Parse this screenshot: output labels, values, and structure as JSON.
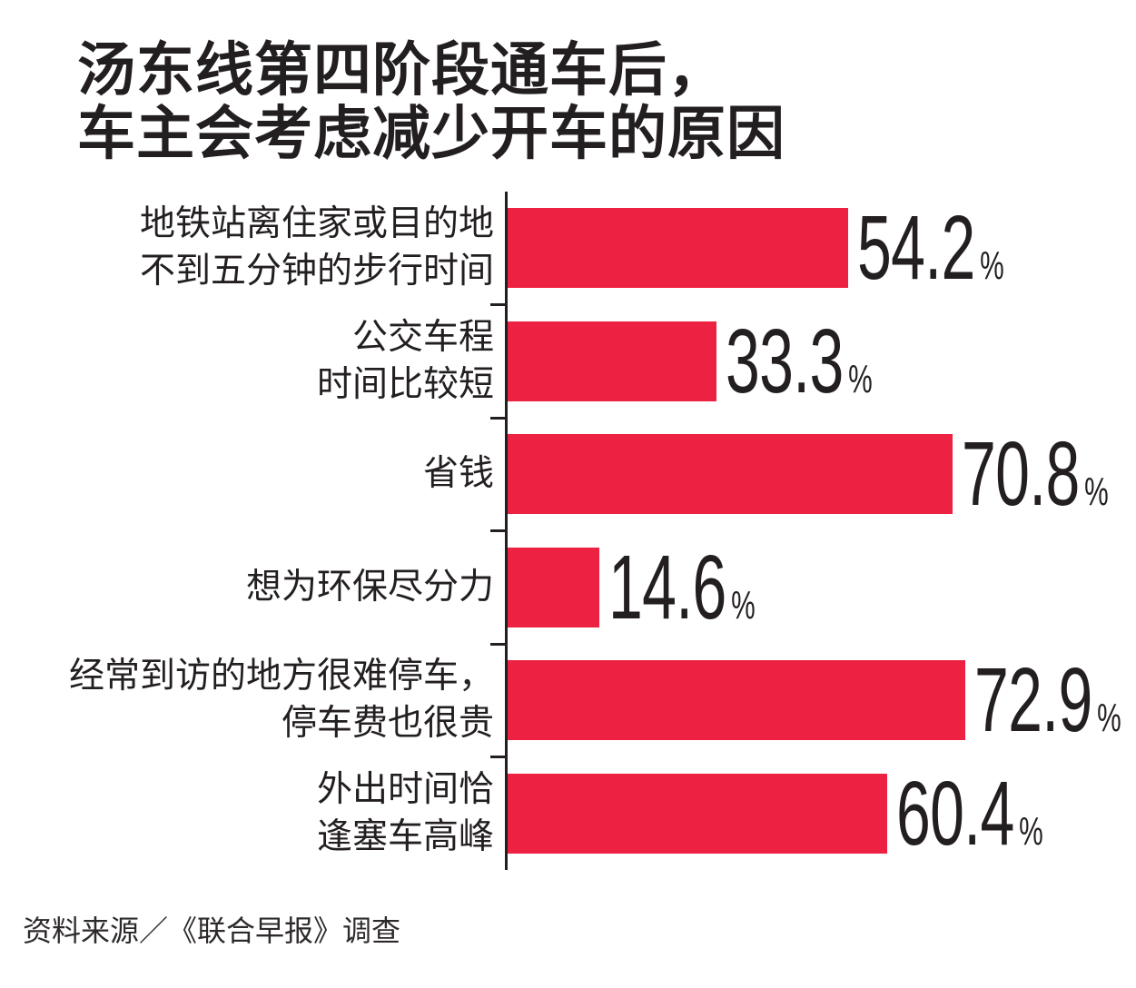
{
  "title": {
    "lines": [
      "汤东线第四阶段通车后，",
      "车主会考虑减少开车的原因"
    ]
  },
  "source": {
    "text": "资料来源／《联合早报》调查"
  },
  "colors": {
    "bar": "#ED2142",
    "ink": "#231F20",
    "source_ink": "#2E2A2B"
  },
  "chart_data": {
    "type": "bar",
    "orientation": "horizontal",
    "title": "汤东线第四阶段通车后，车主会考虑减少开车的原因",
    "value_unit": "%",
    "xlim": [
      0,
      100
    ],
    "grid": false,
    "legend": false,
    "categories": [
      "地铁站离住家或目的地\n不到五分钟的步行时间",
      "公交车程\n时间比较短",
      "省钱",
      "想为环保尽分力",
      "经常到访的地方很难停车，\n停车费也很贵",
      "外出时间恰\n逢塞车高峰"
    ],
    "values": [
      54.2,
      33.3,
      70.8,
      14.6,
      72.9,
      60.4
    ]
  }
}
